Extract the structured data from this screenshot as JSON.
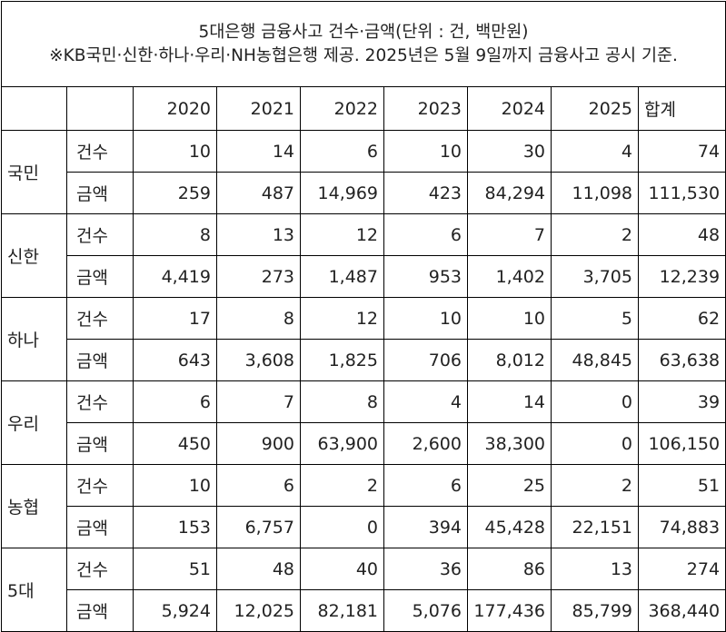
{
  "title_line1": "5대은행 금융사고 건수·금액(단위 : 건, 백만원)",
  "title_line2": "※KB국민·신한·하나·우리·NH농협은행 제공. 2025년은 5월 9일까지 금융사고 공시 기준.",
  "columns": [
    "2020",
    "2021",
    "2022",
    "2023",
    "2024",
    "2025",
    "합계"
  ],
  "row_label_count": "건수",
  "row_label_amount": "금액",
  "banks": [
    {
      "name": "국민",
      "count": [
        "10",
        "14",
        "6",
        "10",
        "30",
        "4",
        "74"
      ],
      "amount": [
        "259",
        "487",
        "14,969",
        "423",
        "84,294",
        "11,098",
        "111,530"
      ]
    },
    {
      "name": "신한",
      "count": [
        "8",
        "13",
        "12",
        "6",
        "7",
        "2",
        "48"
      ],
      "amount": [
        "4,419",
        "273",
        "1,487",
        "953",
        "1,402",
        "3,705",
        "12,239"
      ]
    },
    {
      "name": "하나",
      "count": [
        "17",
        "8",
        "12",
        "10",
        "10",
        "5",
        "62"
      ],
      "amount": [
        "643",
        "3,608",
        "1,825",
        "706",
        "8,012",
        "48,845",
        "63,638"
      ]
    },
    {
      "name": "우리",
      "count": [
        "6",
        "7",
        "8",
        "4",
        "14",
        "0",
        "39"
      ],
      "amount": [
        "450",
        "900",
        "63,900",
        "2,600",
        "38,300",
        "0",
        "106,150"
      ]
    },
    {
      "name": "농협",
      "count": [
        "10",
        "6",
        "2",
        "6",
        "25",
        "2",
        "51"
      ],
      "amount": [
        "153",
        "6,757",
        "0",
        "394",
        "45,428",
        "22,151",
        "74,883"
      ]
    },
    {
      "name": "5대",
      "count": [
        "51",
        "48",
        "40",
        "36",
        "86",
        "13",
        "274"
      ],
      "amount": [
        "5,924",
        "12,025",
        "82,181",
        "5,076",
        "177,436",
        "85,799",
        "368,440"
      ]
    }
  ]
}
